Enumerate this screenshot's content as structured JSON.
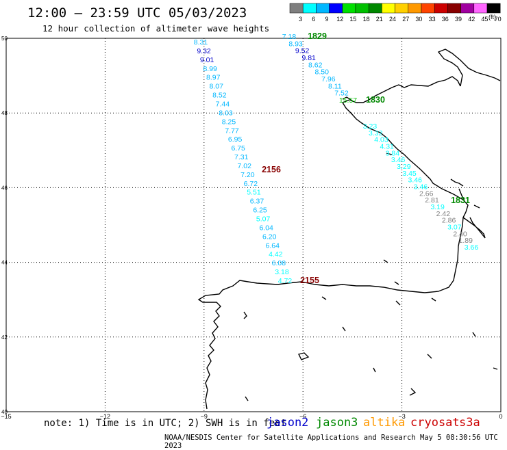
{
  "header": {
    "title": "12:00 — 23:59 UTC 05/03/2023",
    "subtitle": "12 hour collection of altimeter wave heights"
  },
  "legend": {
    "units": "(ft)",
    "bins": [
      {
        "label": "3",
        "color": "#7f7f7f"
      },
      {
        "label": "6",
        "color": "#00ffff"
      },
      {
        "label": "9",
        "color": "#00b7ff"
      },
      {
        "label": "12",
        "color": "#0000ff"
      },
      {
        "label": "15",
        "color": "#00e000"
      },
      {
        "label": "18",
        "color": "#00c000"
      },
      {
        "label": "21",
        "color": "#008800"
      },
      {
        "label": "24",
        "color": "#ffff00"
      },
      {
        "label": "27",
        "color": "#ffd000"
      },
      {
        "label": "30",
        "color": "#ff9900"
      },
      {
        "label": "33",
        "color": "#ff4400"
      },
      {
        "label": "36",
        "color": "#cc0000"
      },
      {
        "label": "39",
        "color": "#880000"
      },
      {
        "label": "42",
        "color": "#a000a0"
      },
      {
        "label": "45",
        "color": "#ff66ff"
      },
      {
        "label": "70",
        "color": "#000000"
      }
    ]
  },
  "axes": {
    "lon_ticks": [
      "−15",
      "−12",
      "−9",
      "−6",
      "−3",
      "0"
    ],
    "lat_ticks": [
      "50",
      "48",
      "46",
      "44",
      "42",
      "40"
    ]
  },
  "tracks": [
    {
      "time_label": "2156",
      "time_color": "#880000",
      "points": [
        {
          "v": "8.31",
          "color": "#00b7ff"
        },
        {
          "v": "9.32",
          "color": "#0000cc"
        },
        {
          "v": "9.01",
          "color": "#0000cc"
        },
        {
          "v": "8.99",
          "color": "#00b7ff"
        },
        {
          "v": "8.97",
          "color": "#00b7ff"
        },
        {
          "v": "8.07",
          "color": "#00b7ff"
        },
        {
          "v": "8.52",
          "color": "#00b7ff"
        },
        {
          "v": "7.44",
          "color": "#00b7ff"
        },
        {
          "v": "8.03",
          "color": "#00b7ff"
        },
        {
          "v": "8.25",
          "color": "#00b7ff"
        },
        {
          "v": "7.77",
          "color": "#00b7ff"
        },
        {
          "v": "6.95",
          "color": "#00b7ff"
        },
        {
          "v": "6.75",
          "color": "#00b7ff"
        },
        {
          "v": "7.31",
          "color": "#00b7ff"
        },
        {
          "v": "7.02",
          "color": "#00b7ff"
        },
        {
          "v": "7.20",
          "color": "#00b7ff"
        },
        {
          "v": "6.72",
          "color": "#00b7ff"
        },
        {
          "v": "5.51",
          "color": "#00ffff"
        },
        {
          "v": "6.37",
          "color": "#00b7ff"
        },
        {
          "v": "6.25",
          "color": "#00b7ff"
        },
        {
          "v": "5.07",
          "color": "#00ffff"
        },
        {
          "v": "6.04",
          "color": "#00b7ff"
        },
        {
          "v": "6.20",
          "color": "#00b7ff"
        },
        {
          "v": "6.64",
          "color": "#00b7ff"
        },
        {
          "v": "4.42",
          "color": "#00ffff"
        },
        {
          "v": "6.08",
          "color": "#00b7ff"
        },
        {
          "v": "3.18",
          "color": "#00ffff"
        },
        {
          "v": "4.72",
          "color": "#00ffff"
        }
      ],
      "end_label": "2155",
      "end_color": "#880000"
    },
    {
      "time_label": "1829",
      "time_color": "#008800",
      "points": [
        {
          "v": "7.18",
          "color": "#00b7ff"
        },
        {
          "v": "8.93",
          "color": "#00b7ff"
        },
        {
          "v": "9.52",
          "color": "#0000cc"
        },
        {
          "v": "9.81",
          "color": "#0000cc"
        },
        {
          "v": "8.62",
          "color": "#00b7ff"
        },
        {
          "v": "8.50",
          "color": "#00b7ff"
        },
        {
          "v": "7.96",
          "color": "#00b7ff"
        },
        {
          "v": "8.11",
          "color": "#00b7ff"
        },
        {
          "v": "7.52",
          "color": "#00b7ff"
        },
        {
          "v": "15.57",
          "color": "#00c000"
        }
      ],
      "end_label": "1830",
      "end_color": "#008800"
    },
    {
      "time_label": "1831",
      "time_color": "#008800",
      "points": [
        {
          "v": "3.23",
          "color": "#00ffff"
        },
        {
          "v": "3.32",
          "color": "#00ffff"
        },
        {
          "v": "4.03",
          "color": "#00ffff"
        },
        {
          "v": "4.31",
          "color": "#00ffff"
        },
        {
          "v": "3.84",
          "color": "#00ffff"
        },
        {
          "v": "3.46",
          "color": "#00ffff"
        },
        {
          "v": "3.29",
          "color": "#00ffff"
        },
        {
          "v": "3.45",
          "color": "#00ffff"
        },
        {
          "v": "3.46",
          "color": "#00ffff"
        },
        {
          "v": "3.46",
          "color": "#00ffff"
        },
        {
          "v": "2.66",
          "color": "#7f7f7f"
        },
        {
          "v": "2.81",
          "color": "#7f7f7f"
        },
        {
          "v": "3.19",
          "color": "#00ffff"
        },
        {
          "v": "2.42",
          "color": "#7f7f7f"
        },
        {
          "v": "2.86",
          "color": "#7f7f7f"
        },
        {
          "v": "3.07",
          "color": "#00ffff"
        },
        {
          "v": "2.40",
          "color": "#7f7f7f"
        },
        {
          "v": "1.89",
          "color": "#7f7f7f"
        },
        {
          "v": "3.66",
          "color": "#00ffff"
        }
      ]
    }
  ],
  "footer": {
    "note": "note: 1) Time is in UTC; 2) SWH is in feet",
    "credit": "NOAA/NESDIS Center for Satellite Applications and Research   May  5 08:30:56 UTC 2023",
    "satellites": [
      {
        "name": "jason2",
        "color": "#0000cc"
      },
      {
        "name": "jason3",
        "color": "#008800"
      },
      {
        "name": "altika",
        "color": "#ff9900"
      },
      {
        "name": "cryosat",
        "color": "#cc0000"
      },
      {
        "name": "s3a",
        "color": "#cc0000"
      }
    ]
  }
}
